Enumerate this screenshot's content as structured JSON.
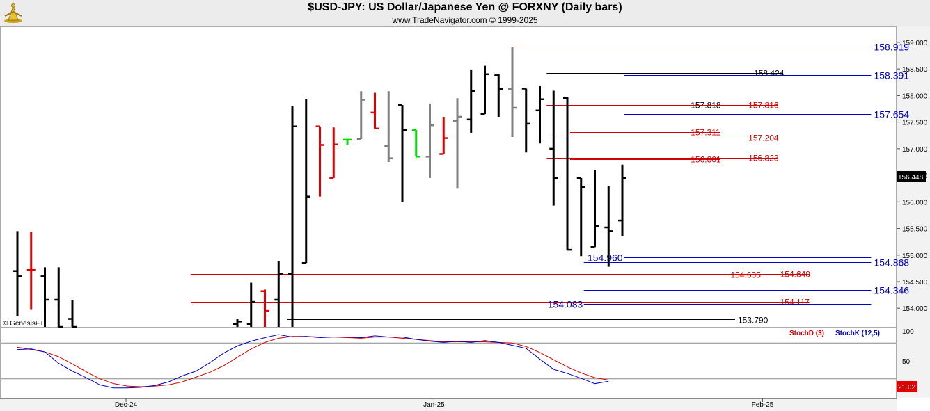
{
  "header": {
    "title": "$USD-JPY:  US Dollar/Japanese Yen @ FORXNY  (Daily bars)",
    "subtitle": "www.TradeNavigator.com © 1999-2025"
  },
  "watermark": "© GenesisFT",
  "colors": {
    "up_bar": "#000000",
    "down_bar": "#e00000",
    "doji_bar": "#808080",
    "green_bar": "#00dd00",
    "level_blue": "#0000c0",
    "level_red": "#d00000",
    "stoch_d": "#d00000",
    "stoch_k": "#0000c0",
    "price_badge": "#000000",
    "stoch_badge": "#e00000"
  },
  "chart_data": [
    {
      "type": "ohlc",
      "title": "$USD-JPY:  US Dollar/Japanese Yen @ FORXNY  (Daily bars)",
      "ylim": [
        153.65,
        159.3
      ],
      "y_ticks": [
        "159.000",
        "158.500",
        "158.000",
        "157.500",
        "157.000",
        "156.500",
        "156.000",
        "155.500",
        "155.000",
        "154.500",
        "154.000"
      ],
      "x_labels": [
        {
          "label": "Dec-24",
          "bar": 7.9
        },
        {
          "label": "Jan-25",
          "bar": 30.3
        },
        {
          "label": "Feb-25",
          "bar": 54.2
        }
      ],
      "last_price": "156.448",
      "bars": [
        {
          "o": 154.7,
          "h": 155.45,
          "l": 153.85,
          "c": 154.6,
          "col": "up"
        },
        {
          "o": 154.72,
          "h": 155.44,
          "l": 153.97,
          "c": 154.72,
          "col": "down"
        },
        {
          "o": 154.6,
          "h": 154.77,
          "l": 153.65,
          "c": 154.16,
          "col": "up"
        },
        {
          "o": 154.16,
          "h": 154.77,
          "l": 153.65,
          "c": 153.65,
          "col": "up"
        },
        {
          "o": 153.8,
          "h": 154.16,
          "l": 153.65,
          "c": 153.65,
          "col": "up"
        },
        null,
        null,
        null,
        null,
        null,
        null,
        null,
        null,
        null,
        null,
        null,
        {
          "o": 153.7,
          "h": 153.8,
          "l": 153.65,
          "c": 153.75,
          "col": "up"
        },
        {
          "o": 153.7,
          "h": 154.48,
          "l": 153.65,
          "c": 154.12,
          "col": "up"
        },
        {
          "o": 154.32,
          "h": 154.35,
          "l": 153.65,
          "c": 153.95,
          "col": "down"
        },
        {
          "o": 154.16,
          "h": 154.88,
          "l": 153.65,
          "c": 154.65,
          "col": "up"
        },
        {
          "o": 154.65,
          "h": 157.8,
          "l": 153.65,
          "c": 157.42,
          "col": "up"
        },
        {
          "o": 154.85,
          "h": 157.93,
          "l": 154.85,
          "c": 156.1,
          "col": "up"
        },
        {
          "o": 157.42,
          "h": 157.42,
          "l": 156.1,
          "c": 157.07,
          "col": "down"
        },
        {
          "o": 156.45,
          "h": 157.4,
          "l": 156.45,
          "c": 157.08,
          "col": "down"
        },
        {
          "o": 157.17,
          "h": 157.18,
          "l": 157.07,
          "c": 157.17,
          "col": "green"
        },
        {
          "o": 157.18,
          "h": 158.08,
          "l": 157.18,
          "c": 157.92,
          "col": "doji"
        },
        {
          "o": 157.68,
          "h": 158.05,
          "l": 157.38,
          "c": 157.38,
          "col": "down"
        },
        {
          "o": 157.05,
          "h": 158.08,
          "l": 156.75,
          "c": 156.82,
          "col": "doji"
        },
        {
          "o": 157.82,
          "h": 157.82,
          "l": 156.0,
          "c": 157.35,
          "col": "up"
        },
        {
          "o": 157.35,
          "h": 157.35,
          "l": 156.85,
          "c": 156.85,
          "col": "green"
        },
        {
          "o": 156.85,
          "h": 157.85,
          "l": 156.45,
          "c": 157.44,
          "col": "doji"
        },
        {
          "o": 156.9,
          "h": 157.6,
          "l": 156.9,
          "c": 157.2,
          "col": "down"
        },
        {
          "o": 157.52,
          "h": 157.95,
          "l": 156.25,
          "c": 157.6,
          "col": "doji"
        },
        {
          "o": 157.55,
          "h": 158.49,
          "l": 157.3,
          "c": 158.08,
          "col": "up"
        },
        {
          "o": 157.65,
          "h": 158.56,
          "l": 157.65,
          "c": 158.4,
          "col": "up"
        },
        {
          "o": 158.38,
          "h": 158.4,
          "l": 157.6,
          "c": 158.12,
          "col": "up"
        },
        {
          "o": 158.12,
          "h": 158.92,
          "l": 157.22,
          "c": 157.77,
          "col": "doji"
        },
        {
          "o": 158.13,
          "h": 158.13,
          "l": 156.93,
          "c": 157.47,
          "col": "up"
        },
        {
          "o": 157.72,
          "h": 158.19,
          "l": 157.1,
          "c": 157.93,
          "col": "up"
        },
        {
          "o": 157.0,
          "h": 158.09,
          "l": 155.93,
          "c": 156.45,
          "col": "up"
        },
        {
          "o": 157.95,
          "h": 157.97,
          "l": 155.1,
          "c": 155.1,
          "col": "up"
        },
        {
          "o": 156.45,
          "h": 156.45,
          "l": 154.98,
          "c": 156.28,
          "col": "up"
        },
        {
          "o": 155.15,
          "h": 156.6,
          "l": 155.15,
          "c": 155.55,
          "col": "up"
        },
        {
          "o": 155.52,
          "h": 156.3,
          "l": 154.78,
          "c": 155.45,
          "col": "up"
        },
        {
          "o": 155.65,
          "h": 156.7,
          "l": 155.35,
          "c": 156.45,
          "col": "up"
        }
      ],
      "levels": [
        {
          "value": 158.919,
          "label": "158.919",
          "color": "blue",
          "from": 36.2,
          "to": 62.1,
          "pos": "right"
        },
        {
          "value": 158.424,
          "label": "158.424",
          "color": "black",
          "from": 38.5,
          "to": 55.7,
          "pos": "mid"
        },
        {
          "value": 158.391,
          "label": "158.391",
          "color": "blue",
          "from": 44.1,
          "to": 62.1,
          "pos": "right"
        },
        {
          "value": 157.818,
          "label": "157.818",
          "color": "black",
          "from": 38.5,
          "to": 51.1,
          "pos": "mid"
        },
        {
          "value": 157.816,
          "label": "157.816",
          "color": "red",
          "from": 38.5,
          "to": 55.3,
          "pos": "mid"
        },
        {
          "value": 157.654,
          "label": "157.654",
          "color": "blue",
          "from": 44.1,
          "to": 62.1,
          "pos": "right"
        },
        {
          "value": 157.311,
          "label": "157.311",
          "color": "red",
          "from": 40.2,
          "to": 51.1,
          "pos": "mid"
        },
        {
          "value": 157.204,
          "label": "157.204",
          "color": "red",
          "from": 38.5,
          "to": 55.3,
          "pos": "mid"
        },
        {
          "value": 156.823,
          "label": "156.823",
          "color": "red",
          "from": 38.5,
          "to": 55.3,
          "pos": "mid"
        },
        {
          "value": 156.801,
          "label": "156.801",
          "color": "red",
          "from": 40.2,
          "to": 51.1,
          "pos": "mid"
        },
        {
          "value": 154.96,
          "label": "154.960",
          "color": "blue",
          "from": 44.1,
          "to": 62.1,
          "pos": "left"
        },
        {
          "value": 154.868,
          "label": "154.868",
          "color": "blue",
          "from": 41.2,
          "to": 62.1,
          "pos": "right"
        },
        {
          "value": 154.635,
          "label": "154.635",
          "color": "red",
          "from": 12.6,
          "to": 54.0,
          "pos": "mid"
        },
        {
          "value": 154.64,
          "label": "154.640",
          "color": "red",
          "from": 12.6,
          "to": 57.6,
          "pos": "mid"
        },
        {
          "value": 154.346,
          "label": "154.346",
          "color": "blue",
          "from": 41.2,
          "to": 62.1,
          "pos": "right"
        },
        {
          "value": 154.117,
          "label": "154.117",
          "color": "red",
          "from": 12.6,
          "to": 57.6,
          "pos": "mid"
        },
        {
          "value": 154.083,
          "label": "154.083",
          "color": "blue",
          "from": 41.2,
          "to": 62.1,
          "pos": "left"
        },
        {
          "value": 153.79,
          "label": "153.790",
          "color": "black",
          "from": 19.6,
          "to": 52.2,
          "pos": "right"
        }
      ]
    },
    {
      "type": "line",
      "ylim": [
        0,
        100
      ],
      "y_ticks": [
        "100",
        "50"
      ],
      "hlines": [
        80,
        20
      ],
      "series": [
        {
          "name": "StochD (3)",
          "color": "red",
          "values": [
            73,
            69,
            65,
            57,
            45,
            32,
            20,
            12,
            8,
            7,
            8,
            10,
            15,
            23,
            31,
            42,
            56,
            70,
            81,
            88,
            91,
            91,
            90,
            90,
            89,
            88,
            90,
            90,
            88,
            86,
            84,
            82,
            82,
            82,
            82,
            81,
            80,
            74,
            64,
            52,
            40,
            30,
            22,
            18
          ]
        },
        {
          "name": "StochK (12,5)",
          "color": "blue",
          "values": [
            69,
            70,
            65,
            46,
            33,
            22,
            10,
            5,
            5,
            6,
            9,
            15,
            25,
            33,
            47,
            63,
            75,
            83,
            89,
            94,
            90,
            91,
            89,
            90,
            90,
            89,
            92,
            90,
            90,
            86,
            83,
            81,
            83,
            81,
            84,
            81,
            76,
            71,
            53,
            36,
            29,
            21,
            12,
            16
          ]
        }
      ],
      "last_value": "21.02"
    }
  ]
}
